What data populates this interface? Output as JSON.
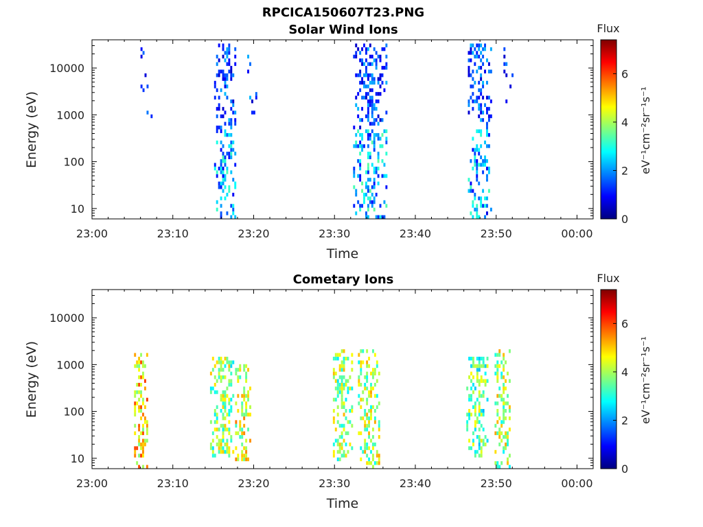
{
  "figure_title": "RPCICA150607T23.PNG",
  "chart_data": [
    {
      "type": "heatmap",
      "title": "Solar Wind Ions",
      "xlabel": "Time",
      "ylabel": "Energy (eV)",
      "x_ticks": [
        "23:00",
        "23:10",
        "23:20",
        "23:30",
        "23:40",
        "23:50",
        "00:00"
      ],
      "x_tick_minutes": [
        0,
        10,
        20,
        30,
        40,
        50,
        60
      ],
      "xlim_minutes": [
        0,
        62
      ],
      "y_scale": "log",
      "y_ticks": [
        "10",
        "100",
        "1000",
        "10000"
      ],
      "y_tick_values": [
        10,
        100,
        1000,
        10000
      ],
      "ylim": [
        6,
        40000
      ],
      "colorbar": {
        "label": "Flux",
        "unit": "eV⁻¹cm⁻²sr⁻¹s⁻¹",
        "ticks": [
          "0",
          "2",
          "4",
          "6"
        ],
        "tick_values": [
          0,
          2,
          4,
          6
        ],
        "range": [
          0,
          7.4
        ],
        "colormap": "jet"
      },
      "bursts": [
        {
          "t": 6.4,
          "width": 1.8,
          "emin": 700,
          "emax": 30000,
          "intensity": 1.6,
          "density": 0.12
        },
        {
          "t": 16.4,
          "width": 2.6,
          "emin": 6,
          "emax": 32000,
          "intensity": 2.1,
          "density": 0.42
        },
        {
          "t": 19.8,
          "width": 1.2,
          "emin": 700,
          "emax": 30000,
          "intensity": 1.6,
          "density": 0.14
        },
        {
          "t": 34.4,
          "width": 4.2,
          "emin": 6,
          "emax": 35000,
          "intensity": 2.2,
          "density": 0.42
        },
        {
          "t": 48.0,
          "width": 3.0,
          "emin": 6,
          "emax": 35000,
          "intensity": 2.0,
          "density": 0.42
        },
        {
          "t": 51.6,
          "width": 1.4,
          "emin": 700,
          "emax": 30000,
          "intensity": 1.5,
          "density": 0.13
        }
      ]
    },
    {
      "type": "heatmap",
      "title": "Cometary Ions",
      "xlabel": "Time",
      "ylabel": "Energy (eV)",
      "x_ticks": [
        "23:00",
        "23:10",
        "23:20",
        "23:30",
        "23:40",
        "23:50",
        "00:00"
      ],
      "x_tick_minutes": [
        0,
        10,
        20,
        30,
        40,
        50,
        60
      ],
      "xlim_minutes": [
        0,
        62
      ],
      "y_scale": "log",
      "y_ticks": [
        "10",
        "100",
        "1000",
        "10000"
      ],
      "y_tick_values": [
        10,
        100,
        1000,
        10000
      ],
      "ylim": [
        6,
        40000
      ],
      "colorbar": {
        "label": "Flux",
        "unit": "eV⁻¹cm⁻²sr⁻¹s⁻¹",
        "ticks": [
          "0",
          "2",
          "4",
          "6"
        ],
        "tick_values": [
          0,
          2,
          4,
          6
        ],
        "range": [
          0,
          7.4
        ],
        "colormap": "jet"
      },
      "bursts": [
        {
          "t": 6.0,
          "width": 1.6,
          "emin": 6,
          "emax": 2000,
          "intensity": 4.8,
          "density": 0.55
        },
        {
          "t": 16.0,
          "width": 2.8,
          "emin": 10,
          "emax": 1500,
          "intensity": 3.8,
          "density": 0.5
        },
        {
          "t": 18.6,
          "width": 1.8,
          "emin": 8,
          "emax": 1000,
          "intensity": 4.4,
          "density": 0.5
        },
        {
          "t": 31.0,
          "width": 2.4,
          "emin": 8,
          "emax": 2000,
          "intensity": 3.9,
          "density": 0.5
        },
        {
          "t": 34.2,
          "width": 2.6,
          "emin": 6,
          "emax": 2000,
          "intensity": 4.0,
          "density": 0.5
        },
        {
          "t": 47.6,
          "width": 2.6,
          "emin": 10,
          "emax": 1500,
          "intensity": 3.5,
          "density": 0.5
        },
        {
          "t": 50.8,
          "width": 2.0,
          "emin": 6,
          "emax": 2000,
          "intensity": 4.0,
          "density": 0.5
        }
      ]
    }
  ]
}
